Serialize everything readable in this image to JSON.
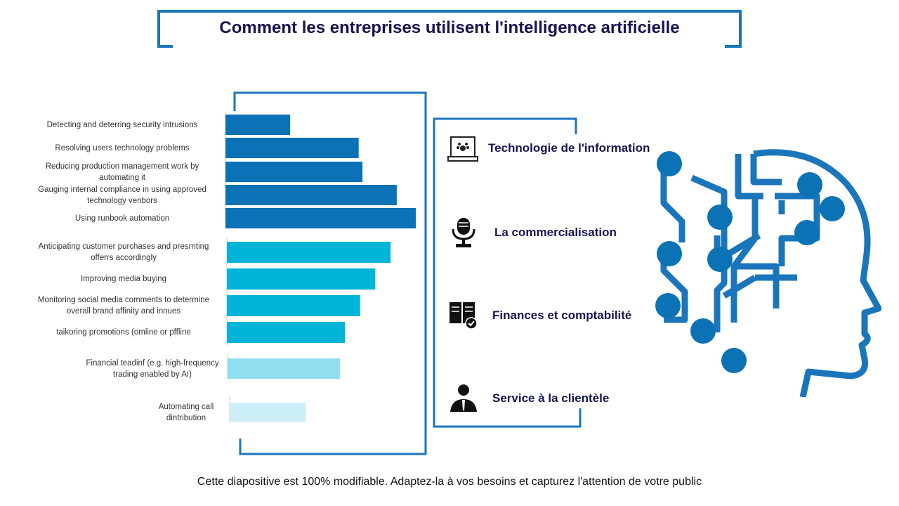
{
  "title": "Comment les entreprises utilisent l'intelligence artificielle",
  "footer": "Cette diapositive est 100% modifiable. Adaptez-la à vos besoins et capturez l'attention de votre public",
  "colors": {
    "title": "#141452",
    "frame": "#1B75BB",
    "dark_blue": "#0B72B5",
    "cyan": "#00B4D8",
    "light_cyan": "#90DFF0",
    "pale_cyan": "#CDEFF7"
  },
  "departments": [
    {
      "label": "Technologie de l'information",
      "icon": "laptop-icon"
    },
    {
      "label": "La commercialisation",
      "icon": "microphone-icon"
    },
    {
      "label": "Finances et comptabilité",
      "icon": "book-check-icon"
    },
    {
      "label": "Service à la clientèle",
      "icon": "support-person-icon"
    }
  ],
  "chart_data": {
    "type": "bar",
    "orientation": "horizontal",
    "categories": [
      "Detecting and deterring security intrusions",
      "Resolving users technology problems",
      "Reducing production management work by automating it",
      "Gauging internal compliance in using approved technology venbors",
      "Using runbook automation",
      "Anticipating customer purchases and presrnting offerrs accordingly",
      "Improving media buying",
      "Monitoring social media comments to determine overall brand affinity and innues",
      "taikoring promotions (omline or pffline",
      "Financial  teadinf (e.g. high-frequency trading enabled by AI)",
      "Automating call dintribution"
    ],
    "values": [
      34,
      70,
      72,
      90,
      100,
      86,
      78,
      70,
      62,
      59,
      40
    ],
    "groups": [
      0,
      0,
      0,
      0,
      0,
      1,
      1,
      1,
      1,
      2,
      3
    ],
    "xlim": [
      0,
      100
    ],
    "grid": false,
    "title": "",
    "xlabel": "",
    "ylabel": ""
  }
}
